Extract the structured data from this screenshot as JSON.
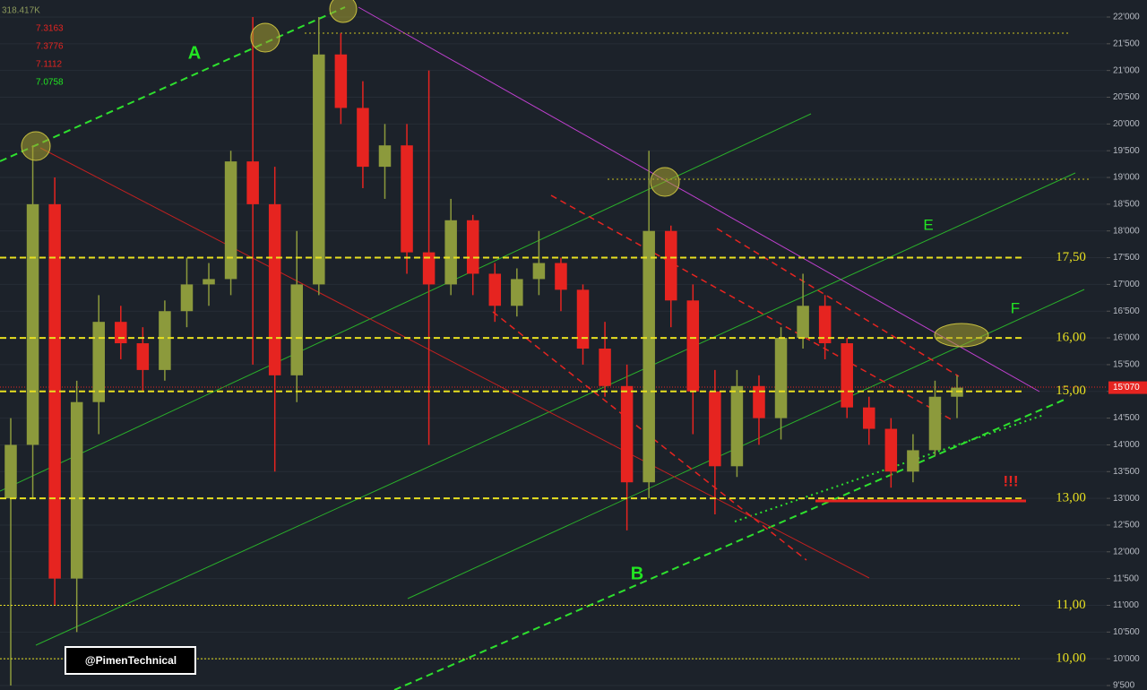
{
  "chart_data": {
    "type": "candlestick",
    "open": [
      13000,
      14000,
      18500,
      11500,
      14800,
      16300,
      15900,
      15400,
      16500,
      17000,
      17100,
      19300,
      18500,
      15300,
      17000,
      21300,
      20300,
      19200,
      19600,
      17600,
      17000,
      18200,
      17200,
      16600,
      17100,
      17400,
      16900,
      15800,
      15100,
      13300,
      18000,
      16700,
      15000,
      13600,
      15100,
      14500,
      16000,
      16600,
      15900,
      14700,
      14300,
      13500,
      13900,
      14900
    ],
    "high": [
      14500,
      19600,
      19000,
      15200,
      16800,
      16600,
      16200,
      16700,
      17500,
      17400,
      19500,
      22000,
      19200,
      18000,
      22000,
      21700,
      20800,
      20000,
      20000,
      21000,
      18600,
      18300,
      17400,
      17300,
      18000,
      17500,
      17000,
      16300,
      15500,
      19500,
      18100,
      17000,
      15400,
      15400,
      15300,
      16200,
      17200,
      16800,
      16000,
      14900,
      14500,
      14200,
      15200,
      15300
    ],
    "low": [
      9500,
      13000,
      11000,
      10500,
      14200,
      15600,
      15000,
      15200,
      16200,
      16600,
      16800,
      15500,
      13500,
      14800,
      16800,
      20000,
      18800,
      18600,
      17200,
      14000,
      16800,
      16800,
      16300,
      16400,
      16800,
      16500,
      15500,
      14900,
      12400,
      13000,
      16200,
      14200,
      12700,
      13400,
      14000,
      14100,
      15800,
      15600,
      14500,
      14000,
      13200,
      13300,
      13800,
      14500
    ],
    "close": [
      14000,
      18500,
      11500,
      14800,
      16300,
      15900,
      15400,
      16500,
      17000,
      17100,
      19300,
      18500,
      15300,
      17000,
      21300,
      20300,
      19200,
      19600,
      17600,
      17000,
      18200,
      17200,
      16600,
      17100,
      17400,
      16900,
      15800,
      15100,
      13300,
      18000,
      16700,
      15000,
      13600,
      15100,
      14500,
      16000,
      16600,
      15900,
      14700,
      14300,
      13500,
      13900,
      14900,
      15070
    ],
    "up_color": "#8c9a3c",
    "down_color": "#e62420",
    "ylim": [
      9500,
      22000
    ],
    "yticks": [
      {
        "value": 9500,
        "label": "9'500"
      },
      {
        "value": 10000,
        "label": "10'000"
      },
      {
        "value": 10500,
        "label": "10'500"
      },
      {
        "value": 11000,
        "label": "11'000"
      },
      {
        "value": 11500,
        "label": "11'500"
      },
      {
        "value": 12000,
        "label": "12'000"
      },
      {
        "value": 12500,
        "label": "12'500"
      },
      {
        "value": 13000,
        "label": "13'000"
      },
      {
        "value": 13500,
        "label": "13'500"
      },
      {
        "value": 14000,
        "label": "14'000"
      },
      {
        "value": 14500,
        "label": "14'500"
      },
      {
        "value": 15000,
        "label": "15'000"
      },
      {
        "value": 15500,
        "label": "15'500"
      },
      {
        "value": 16000,
        "label": "16'000"
      },
      {
        "value": 16500,
        "label": "16'500"
      },
      {
        "value": 17000,
        "label": "17'000"
      },
      {
        "value": 17500,
        "label": "17'500"
      },
      {
        "value": 18000,
        "label": "18'000"
      },
      {
        "value": 18500,
        "label": "18'500"
      },
      {
        "value": 19000,
        "label": "19'000"
      },
      {
        "value": 19500,
        "label": "19'500"
      },
      {
        "value": 20000,
        "label": "20'000"
      },
      {
        "value": 20500,
        "label": "20'500"
      },
      {
        "value": 21000,
        "label": "21'000"
      },
      {
        "value": 21500,
        "label": "21'500"
      },
      {
        "value": 22000,
        "label": "22'000"
      }
    ],
    "grid": true,
    "levels": [
      {
        "value": 17500,
        "label": "17,50"
      },
      {
        "value": 16000,
        "label": "16,00"
      },
      {
        "value": 15000,
        "label": "15,00"
      },
      {
        "value": 13000,
        "label": "13,00"
      },
      {
        "value": 11000,
        "label": "11,00"
      },
      {
        "value": 10000,
        "label": "10,00"
      }
    ],
    "level_color": "#e8e020",
    "last_price": {
      "value": 15070,
      "label": "15'070"
    },
    "indicators": [
      "318.417K",
      "7.3163",
      "7.3776",
      "7.1112",
      "7.0758"
    ],
    "annotations": [
      "A",
      "B",
      "E",
      "F",
      "!!!"
    ],
    "watermark": "@PimenTechnical"
  }
}
